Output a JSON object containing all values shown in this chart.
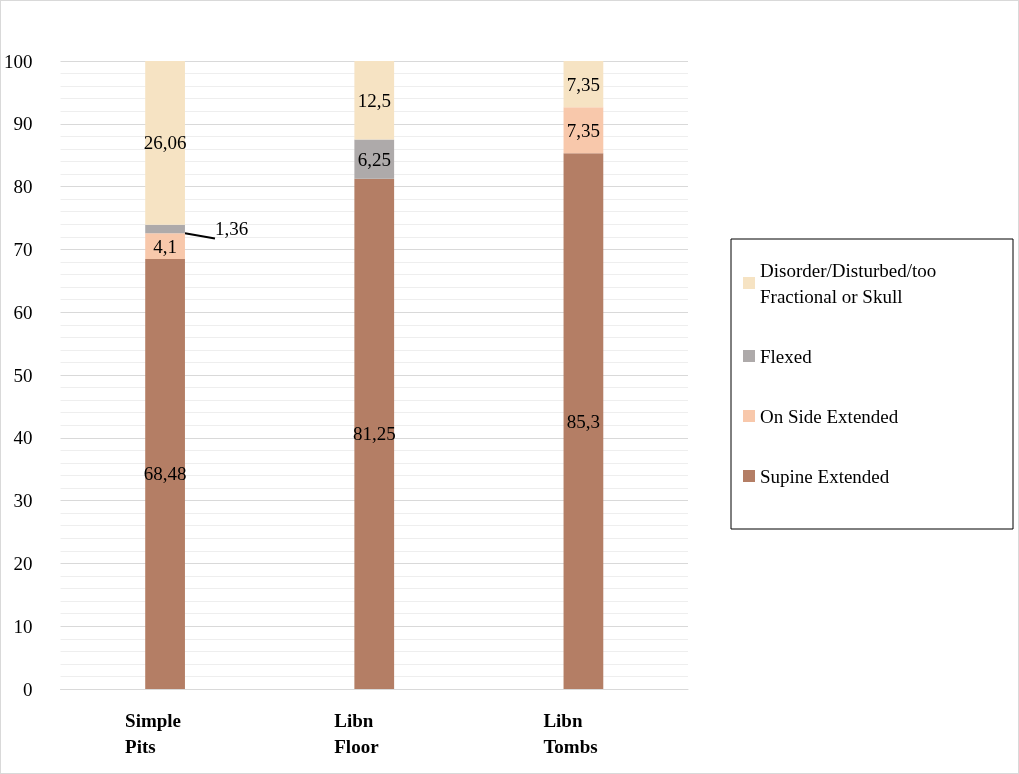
{
  "chart_data": {
    "type": "bar",
    "stacked": true,
    "categories": [
      "Simple Pits",
      "Libn Floor",
      "Libn Tombs"
    ],
    "series": [
      {
        "name": "Supine Extended",
        "color": "#b47e65",
        "values": [
          68.48,
          81.25,
          85.3
        ],
        "value_labels": [
          "68,48",
          "81,25",
          "85,3"
        ]
      },
      {
        "name": "On Side Extended",
        "color": "#f8c8ab",
        "values": [
          4.1,
          0,
          7.35
        ],
        "value_labels": [
          "4,1",
          null,
          "7,35"
        ]
      },
      {
        "name": "Flexed",
        "color": "#aeaaaa",
        "values": [
          1.36,
          6.25,
          0
        ],
        "value_labels": [
          "1,36",
          "6,25",
          null
        ]
      },
      {
        "name": "Disorder/Disturbed/too Fractional or Skull",
        "color": "#f6e3c3",
        "values": [
          26.06,
          12.5,
          7.35
        ],
        "value_labels": [
          "26,06",
          "12,5",
          "7,35"
        ]
      }
    ],
    "ylim": [
      0,
      100
    ],
    "yticks": [
      0,
      10,
      20,
      30,
      40,
      50,
      60,
      70,
      80,
      90,
      100
    ],
    "grid": true,
    "legend": "right"
  }
}
